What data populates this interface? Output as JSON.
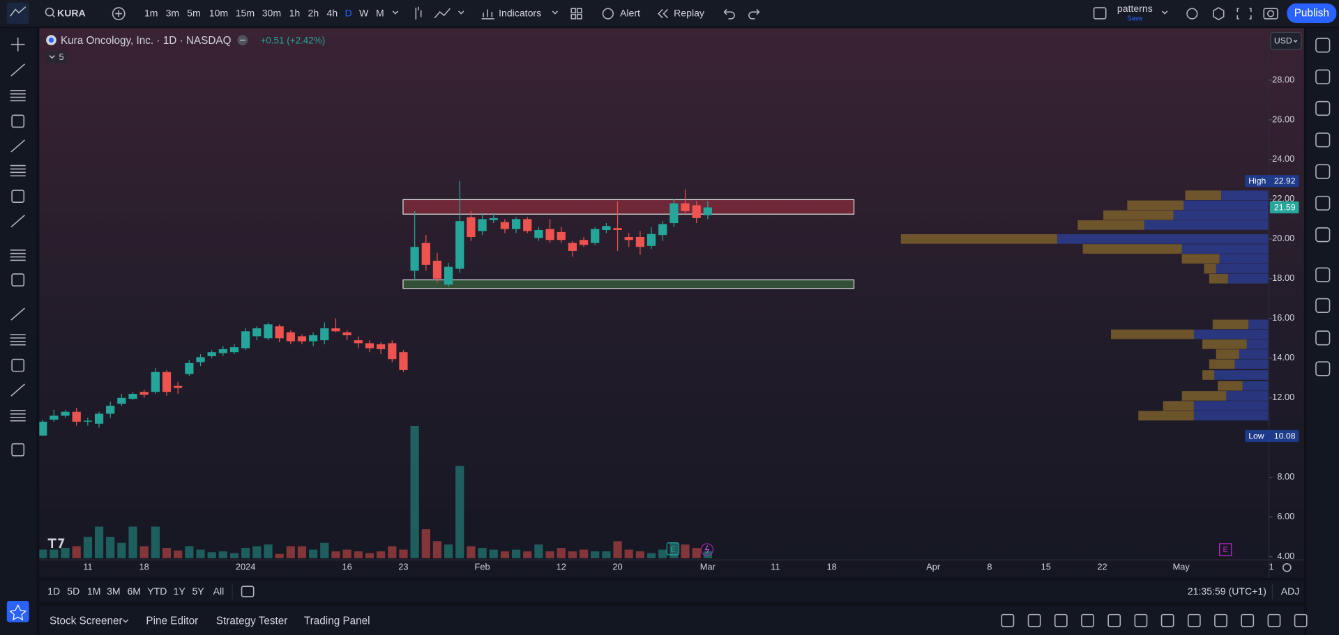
{
  "toolbar": {
    "symbol": "KURA",
    "intervals": [
      "1m",
      "3m",
      "5m",
      "10m",
      "15m",
      "30m",
      "1h",
      "2h",
      "4h",
      "D",
      "W",
      "M"
    ],
    "indicators": "Indicators",
    "alert": "Alert",
    "replay": "Replay",
    "layout_name": "patterns",
    "layout_save": "Save",
    "publish": "Publish"
  },
  "legend": {
    "title": "Kura Oncology, Inc. · 1D · NASDAQ",
    "change": "+0.51 (+2.42%)",
    "indicators_count": 5
  },
  "currency": "USD",
  "range_bar": {
    "ranges": [
      "1D",
      "5D",
      "1M",
      "3M",
      "6M",
      "YTD",
      "1Y",
      "5Y",
      "All"
    ],
    "clock": "21:35:59 (UTC+1)",
    "adj": "ADJ"
  },
  "bottom_tabs": [
    "Stock Screener",
    "Pine Editor",
    "Strategy Tester",
    "Trading Panel"
  ],
  "earnings_badge": "E",
  "chart_data": {
    "type": "candlestick",
    "up_color": "#26a69a",
    "down_color": "#ef5350",
    "grid": false,
    "categories": [
      null,
      null,
      null,
      null,
      "11",
      null,
      null,
      null,
      null,
      "18",
      null,
      null,
      null,
      null,
      null,
      null,
      null,
      null,
      "2024",
      null,
      null,
      null,
      null,
      null,
      null,
      null,
      null,
      "16",
      null,
      null,
      null,
      null,
      "23",
      null,
      null,
      null,
      null,
      null,
      null,
      "Feb",
      null,
      null,
      null,
      null,
      null,
      null,
      "12",
      null,
      null,
      null,
      null,
      "20",
      null,
      null,
      null,
      null,
      null,
      null,
      null,
      "Mar",
      null,
      null,
      null,
      null,
      null,
      "11",
      null,
      null,
      null,
      null,
      "18",
      null,
      null,
      null,
      null,
      null,
      null,
      null,
      null,
      "Apr",
      null,
      null,
      null,
      null,
      "8",
      null,
      null,
      null,
      null,
      "15",
      null,
      null,
      null,
      null,
      "22",
      null,
      null,
      null,
      null,
      null,
      null,
      "May",
      null,
      null,
      null,
      null,
      null,
      null,
      null,
      "1"
    ],
    "open": [
      10.1,
      10.9,
      11.1,
      11.3,
      10.8,
      10.7,
      11.2,
      11.7,
      11.95,
      12.3,
      12.3,
      13.3,
      12.6,
      13.2,
      13.8,
      14.1,
      14.25,
      14.3,
      14.5,
      15.1,
      15.0,
      15.6,
      15.3,
      15.1,
      14.85,
      14.9,
      15.5,
      15.3,
      14.9,
      14.75,
      14.7,
      14.75,
      14.3,
      18.4,
      19.8,
      18.9,
      17.7,
      18.5,
      21.1,
      20.4,
      20.95,
      20.85,
      20.5,
      21.0,
      20.05,
      20.5,
      20.35,
      19.8,
      19.95,
      19.8,
      20.45,
      20.55,
      20.1,
      20.1,
      19.65,
      20.2,
      20.8,
      21.8,
      21.7,
      21.2,
      null,
      null,
      null,
      null,
      null,
      null,
      null,
      null,
      null,
      null,
      null,
      null,
      null,
      null,
      null,
      null,
      null,
      null,
      null,
      null,
      null,
      null,
      null,
      null,
      null,
      null,
      null,
      null,
      null,
      null,
      null,
      null,
      null,
      null,
      null,
      null,
      null,
      null,
      null,
      null,
      null,
      null,
      null,
      null,
      null,
      null,
      null,
      null,
      null,
      null
    ],
    "high": [
      10.9,
      11.4,
      11.4,
      11.5,
      11.0,
      11.3,
      11.8,
      12.2,
      12.3,
      12.4,
      13.5,
      13.4,
      12.8,
      13.9,
      14.2,
      14.4,
      14.6,
      14.7,
      15.5,
      15.6,
      15.8,
      15.7,
      15.4,
      15.2,
      15.3,
      15.8,
      16.0,
      15.4,
      15.1,
      14.9,
      14.8,
      14.9,
      14.4,
      21.4,
      20.2,
      19.3,
      18.8,
      22.92,
      21.4,
      21.3,
      21.3,
      21.0,
      21.1,
      21.1,
      20.6,
      21.0,
      20.6,
      19.9,
      20.1,
      20.6,
      20.8,
      21.9,
      20.3,
      20.4,
      20.6,
      20.9,
      22.0,
      22.5,
      21.9,
      21.9,
      null,
      null,
      null,
      null,
      null,
      null,
      null,
      null,
      null,
      null,
      null,
      null,
      null,
      null,
      null,
      null,
      null,
      null,
      null,
      null,
      null,
      null,
      null,
      null,
      null,
      null,
      null,
      null,
      null,
      null,
      null,
      null,
      null,
      null,
      null,
      null,
      null,
      null,
      null,
      null,
      null,
      null,
      null,
      null,
      null,
      null,
      null,
      null,
      null,
      null
    ],
    "low": [
      10.08,
      10.8,
      11.0,
      10.6,
      10.6,
      10.5,
      11.0,
      11.6,
      11.9,
      12.0,
      12.2,
      12.1,
      12.2,
      13.1,
      13.6,
      14.0,
      14.1,
      14.2,
      14.4,
      14.9,
      14.9,
      14.8,
      14.7,
      14.7,
      14.6,
      14.7,
      15.3,
      14.9,
      14.5,
      14.3,
      14.2,
      13.8,
      13.3,
      17.9,
      18.4,
      17.8,
      17.6,
      18.3,
      19.9,
      20.2,
      20.8,
      20.3,
      20.3,
      20.3,
      19.9,
      19.8,
      19.8,
      19.1,
      19.6,
      19.7,
      20.3,
      19.4,
      19.6,
      19.2,
      19.5,
      19.9,
      20.6,
      21.3,
      20.8,
      21.0,
      null,
      null,
      null,
      null,
      null,
      null,
      null,
      null,
      null,
      null,
      null,
      null,
      null,
      null,
      null,
      null,
      null,
      null,
      null,
      null,
      null,
      null,
      null,
      null,
      null,
      null,
      null,
      null,
      null,
      null,
      null,
      null,
      null,
      null,
      null,
      null,
      null,
      null,
      null,
      null,
      null,
      null,
      null,
      null,
      null,
      null,
      null,
      null,
      null,
      null
    ],
    "close": [
      10.8,
      11.1,
      11.3,
      10.8,
      10.85,
      11.2,
      11.6,
      12.0,
      12.2,
      12.15,
      13.3,
      12.3,
      12.5,
      13.75,
      14.05,
      14.3,
      14.45,
      14.55,
      15.35,
      15.5,
      15.7,
      15.0,
      14.85,
      14.85,
      15.15,
      15.5,
      15.35,
      15.15,
      14.75,
      14.5,
      14.45,
      13.95,
      13.4,
      19.6,
      18.7,
      18.0,
      18.6,
      20.9,
      20.1,
      21.0,
      21.05,
      20.5,
      21.0,
      20.4,
      20.45,
      19.95,
      19.95,
      19.4,
      19.7,
      20.5,
      20.65,
      20.45,
      19.95,
      19.6,
      20.25,
      20.75,
      21.8,
      21.4,
      21.05,
      21.59,
      null,
      null,
      null,
      null,
      null,
      null,
      null,
      null,
      null,
      null,
      null,
      null,
      null,
      null,
      null,
      null,
      null,
      null,
      null,
      null,
      null,
      null,
      null,
      null,
      null,
      null,
      null,
      null,
      null,
      null,
      null,
      null,
      null,
      null,
      null,
      null,
      null,
      null,
      null,
      null,
      null,
      null,
      null,
      null,
      null,
      null,
      null,
      null,
      null,
      null
    ],
    "volume": [
      10,
      10,
      12,
      14,
      25,
      37,
      25,
      18,
      37,
      14,
      37,
      12,
      9,
      14,
      10,
      7,
      8,
      6,
      12,
      14,
      16,
      5,
      14,
      14,
      10,
      18,
      8,
      10,
      8,
      6,
      8,
      14,
      10,
      155,
      34,
      20,
      16,
      108,
      14,
      12,
      10,
      8,
      10,
      8,
      16,
      8,
      12,
      8,
      10,
      8,
      8,
      20,
      10,
      8,
      6,
      10,
      18,
      16,
      12,
      8,
      null,
      null,
      null,
      null,
      null,
      null,
      null,
      null,
      null,
      null,
      null,
      null,
      null,
      null,
      null,
      null,
      null,
      null,
      null,
      null,
      null,
      null,
      null,
      null,
      null,
      null,
      null,
      null,
      null,
      null,
      null,
      null,
      null,
      null,
      null,
      null,
      null,
      null,
      null,
      null,
      null,
      null,
      null,
      null,
      null,
      null,
      null,
      null,
      null,
      null
    ],
    "ylim": [
      3.84,
      30.4
    ],
    "yticks": [
      {
        "value": 4,
        "label": "4.00"
      },
      {
        "value": 6,
        "label": "6.00"
      },
      {
        "value": 8,
        "label": "8.00"
      },
      {
        "value": 10,
        "label": "10.00"
      },
      {
        "value": 12,
        "label": "12.00"
      },
      {
        "value": 14,
        "label": "14.00"
      },
      {
        "value": 16,
        "label": "16.00"
      },
      {
        "value": 18,
        "label": "18.00"
      },
      {
        "value": 20,
        "label": "20.00"
      },
      {
        "value": 22,
        "label": "22.00"
      },
      {
        "value": 24,
        "label": "24.00"
      },
      {
        "value": 26,
        "label": "26.00"
      },
      {
        "value": 28,
        "label": "28.00"
      }
    ],
    "price_labels": [
      {
        "label": "High",
        "value": 22.92
      },
      {
        "value": 21.59
      },
      {
        "label": "Low",
        "value": 10.08
      }
    ],
    "zones": [
      {
        "top": 21.98,
        "bottom": 21.25,
        "color": "#7a2a3a"
      },
      {
        "top": 17.94,
        "bottom": 17.51,
        "color": "#35583a"
      }
    ],
    "volume_profile": {
      "up_color": "#2b3c8e",
      "down_color": "#7a5f2c",
      "rows": [
        {
          "price": 22.2,
          "up": 55,
          "down": 42
        },
        {
          "price": 21.7,
          "up": 99,
          "down": 66
        },
        {
          "price": 21.2,
          "up": 111,
          "down": 82
        },
        {
          "price": 20.7,
          "up": 145,
          "down": 78
        },
        {
          "price": 20.0,
          "up": 247,
          "down": 183
        },
        {
          "price": 19.5,
          "up": 101,
          "down": 116
        },
        {
          "price": 19.0,
          "up": 57,
          "down": 44
        },
        {
          "price": 18.5,
          "up": 61,
          "down": 14
        },
        {
          "price": 18.0,
          "up": 47,
          "down": 22
        },
        {
          "price": 15.7,
          "up": 23,
          "down": 42
        },
        {
          "price": 15.2,
          "up": 87,
          "down": 97
        },
        {
          "price": 14.7,
          "up": 25,
          "down": 52
        },
        {
          "price": 14.2,
          "up": 34,
          "down": 27
        },
        {
          "price": 13.7,
          "up": 39,
          "down": 30
        },
        {
          "price": 13.15,
          "up": 63,
          "down": 14
        },
        {
          "price": 12.6,
          "up": 30,
          "down": 29
        },
        {
          "price": 12.1,
          "up": 49,
          "down": 52
        },
        {
          "price": 11.6,
          "up": 87,
          "down": 36
        },
        {
          "price": 11.1,
          "up": 87,
          "down": 65
        }
      ]
    }
  }
}
